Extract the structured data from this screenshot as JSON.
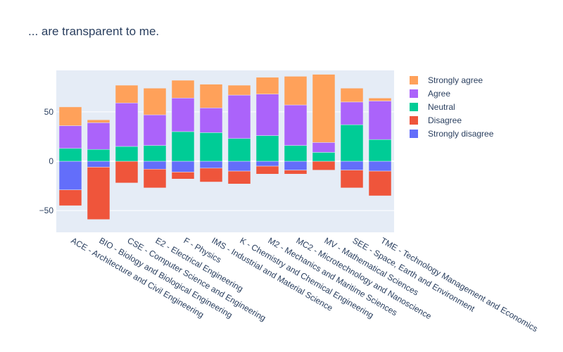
{
  "chart_data": {
    "type": "bar",
    "stacked": "relative",
    "title": "... are transparent to me.",
    "xlabel": "",
    "ylabel": "",
    "ylim": [
      -72,
      92
    ],
    "yticks": [
      -50,
      0,
      50
    ],
    "grid": true,
    "legend_position": "right",
    "categories": [
      "ACE - Architecture and Civil Engineering",
      "BIO - Biology and Biological Engineering",
      "CSE - Computer Science and Engineering",
      "E2 - Electrical Engineering",
      "F - Physics",
      "IMS - Industrial and Material Science",
      "K - Chemistry and Chemical Engineering",
      "M2 - Mechanics and Maritime Sciences",
      "MC2 - Microtechnology and Nanoscience",
      "MV - Mathematical Sciences",
      "SEE - Space, Earth and Environment",
      "TME - Technology Management and Economics"
    ],
    "series": [
      {
        "name": "Strongly disagree",
        "color": "#636efa",
        "values": [
          -29,
          -6,
          0,
          -8,
          -11,
          -7,
          -10,
          -5,
          -9,
          0,
          -9,
          -10
        ]
      },
      {
        "name": "Disagree",
        "color": "#ef553b",
        "values": [
          -16,
          -53,
          -22,
          -19,
          -7,
          -14,
          -13,
          -8,
          -4,
          -9,
          -18,
          -25
        ]
      },
      {
        "name": "Neutral",
        "color": "#00cc96",
        "values": [
          13,
          12,
          15,
          16,
          30,
          29,
          23,
          26,
          16,
          9,
          37,
          22
        ]
      },
      {
        "name": "Agree",
        "color": "#ab63fa",
        "values": [
          23,
          27,
          44,
          31,
          34,
          25,
          44,
          42,
          41,
          10,
          23,
          39
        ]
      },
      {
        "name": "Strongly agree",
        "color": "#ffa15a",
        "values": [
          19,
          3,
          18,
          27,
          18,
          24,
          10,
          17,
          29,
          69,
          14,
          3
        ]
      }
    ],
    "legend_order": [
      "Strongly agree",
      "Agree",
      "Neutral",
      "Disagree",
      "Strongly disagree"
    ],
    "colors": {
      "plot_background": "#e5ecf6",
      "grid": "#ffffff",
      "text": "#2a3f5f"
    }
  }
}
